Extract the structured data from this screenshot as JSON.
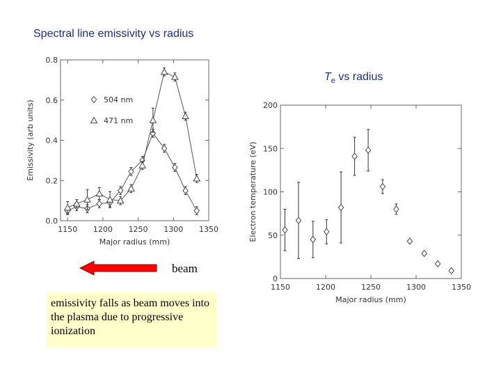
{
  "slide": {
    "left_heading": "Spectral line emissivity vs radius",
    "right_heading_symbol": "T",
    "right_heading_sub": "e",
    "right_heading_rest": " vs radius",
    "beam_label": "beam",
    "note": "emissivity falls as beam moves into the plasma due to progressive ionization",
    "arrow_color": "#ff0000"
  },
  "chart_data": [
    {
      "type": "line",
      "title": "",
      "xlabel": "Major radius (mm)",
      "ylabel": "Emissivity (arb units)",
      "xlim": [
        1140,
        1350
      ],
      "ylim": [
        0,
        0.8
      ],
      "xticks": [
        1150,
        1200,
        1250,
        1300,
        1350
      ],
      "yticks": [
        0.0,
        0.2,
        0.4,
        0.6,
        0.8
      ],
      "grid": false,
      "legend": "upper-left",
      "series": [
        {
          "name": "504 nm",
          "marker": "diamond",
          "x": [
            1150,
            1163,
            1178,
            1195,
            1210,
            1225,
            1240,
            1256,
            1271,
            1287,
            1302,
            1317,
            1333
          ],
          "y": [
            0.05,
            0.07,
            0.06,
            0.085,
            0.09,
            0.15,
            0.245,
            0.3,
            0.435,
            0.36,
            0.265,
            0.15,
            0.05
          ],
          "err": [
            0.02,
            0.02,
            0.02,
            0.02,
            0.02,
            0.02,
            0.02,
            0.02,
            0.02,
            0.02,
            0.02,
            0.02,
            0.02
          ]
        },
        {
          "name": "471 nm",
          "marker": "triangle",
          "x": [
            1150,
            1163,
            1178,
            1195,
            1210,
            1225,
            1240,
            1256,
            1271,
            1287,
            1302,
            1317,
            1333
          ],
          "y": [
            0.065,
            0.085,
            0.105,
            0.135,
            0.105,
            0.1,
            0.16,
            0.275,
            0.5,
            0.74,
            0.715,
            0.52,
            0.21
          ],
          "err": [
            0.03,
            0.02,
            0.05,
            0.03,
            0.04,
            0.02,
            0.02,
            0.02,
            0.06,
            0.02,
            0.02,
            0.02,
            0.02
          ]
        }
      ]
    },
    {
      "type": "scatter",
      "title": "",
      "xlabel": "Major radius (mm)",
      "ylabel": "Electron temperature (eV)",
      "xlim": [
        1150,
        1350
      ],
      "ylim": [
        0,
        200
      ],
      "xticks": [
        1150,
        1200,
        1250,
        1300,
        1350
      ],
      "yticks": [
        0,
        50,
        100,
        150,
        200
      ],
      "grid": false,
      "legend": "none",
      "series": [
        {
          "name": "",
          "marker": "diamond",
          "x": [
            1155,
            1170,
            1186,
            1201,
            1217,
            1232,
            1247,
            1263,
            1278,
            1293,
            1309,
            1324,
            1339
          ],
          "y": [
            56,
            67,
            45,
            54,
            82,
            141,
            148,
            106,
            80,
            43,
            29,
            17,
            9
          ],
          "err": [
            24,
            44,
            21,
            14,
            41,
            22,
            24,
            8,
            6,
            2,
            2,
            2,
            2
          ]
        }
      ]
    }
  ]
}
